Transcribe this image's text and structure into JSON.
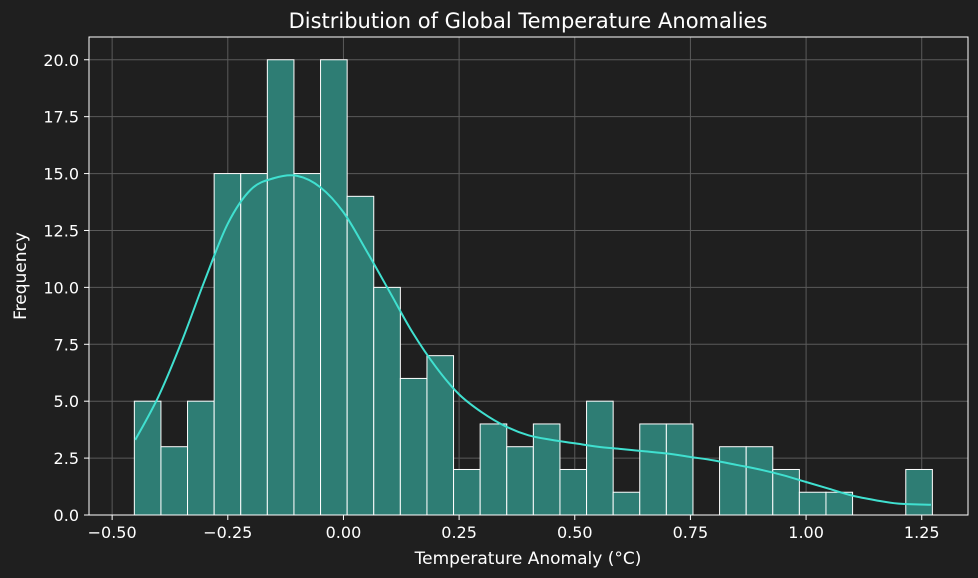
{
  "chart_data": {
    "type": "bar",
    "title": "Distribution of Global Temperature Anomalies",
    "xlabel": "Temperature Anomaly (°C)",
    "ylabel": "Frequency",
    "xlim": [
      -0.55,
      1.35
    ],
    "ylim": [
      0,
      21
    ],
    "grid": true,
    "x_ticks": [
      -0.5,
      -0.25,
      0.0,
      0.25,
      0.5,
      0.75,
      1.0,
      1.25
    ],
    "x_tick_labels": [
      "−0.50",
      "−0.25",
      "0.00",
      "0.25",
      "0.50",
      "0.75",
      "1.00",
      "1.25"
    ],
    "y_ticks": [
      0,
      2.5,
      5,
      7.5,
      10,
      12.5,
      15,
      17.5,
      20
    ],
    "y_tick_labels": [
      "0.0",
      "2.5",
      "5.0",
      "7.5",
      "10.0",
      "12.5",
      "15.0",
      "17.5",
      "20.0"
    ],
    "bins": {
      "start": -0.452,
      "width": 0.0575,
      "counts": [
        5,
        3,
        5,
        15,
        15,
        20,
        15,
        20,
        14,
        10,
        6,
        7,
        2,
        4,
        3,
        4,
        2,
        5,
        1,
        4,
        4,
        0,
        3,
        3,
        2,
        1,
        1,
        0,
        0,
        2
      ]
    },
    "kde": {
      "x": [
        -0.45,
        -0.4,
        -0.35,
        -0.3,
        -0.25,
        -0.2,
        -0.15,
        -0.1,
        -0.05,
        0.0,
        0.05,
        0.1,
        0.15,
        0.2,
        0.25,
        0.3,
        0.35,
        0.4,
        0.45,
        0.5,
        0.55,
        0.6,
        0.65,
        0.7,
        0.75,
        0.8,
        0.85,
        0.9,
        0.95,
        1.0,
        1.05,
        1.1,
        1.15,
        1.2,
        1.27
      ],
      "y": [
        3.3,
        5.2,
        7.6,
        10.3,
        12.8,
        14.3,
        14.8,
        14.9,
        14.4,
        13.3,
        11.6,
        9.8,
        8.0,
        6.5,
        5.3,
        4.5,
        3.9,
        3.5,
        3.3,
        3.15,
        3.0,
        2.9,
        2.8,
        2.7,
        2.55,
        2.4,
        2.2,
        2.0,
        1.75,
        1.45,
        1.15,
        0.85,
        0.65,
        0.5,
        0.45
      ]
    },
    "colors": {
      "background": "#1f1f1f",
      "bar_fill": "#2e7d74",
      "bar_edge": "#ffffff",
      "kde_line": "#40e0d0",
      "grid": "#5a5a5a",
      "text": "#ffffff"
    }
  }
}
